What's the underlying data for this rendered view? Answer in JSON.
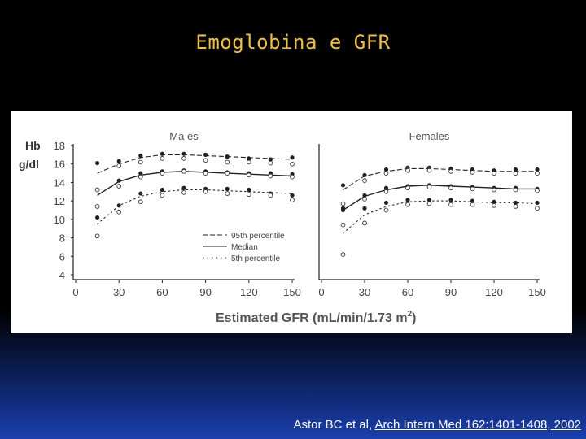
{
  "slide": {
    "title": "Emoglobina e GFR",
    "citation_authors": "Astor BC et al, ",
    "citation_link": "Arch Intern Med 162:1401-1408, 2002"
  },
  "chart_data": {
    "type": "line",
    "ylabel_line1": "Hb",
    "ylabel_line2": "g/dl",
    "xlabel": "Estimated GFR (mL/min/1.73 m",
    "xlabel_sup": "2",
    "xlabel_close": ")",
    "yticks": [
      18,
      16,
      14,
      12,
      10,
      8,
      6,
      4
    ],
    "xticks": [
      0,
      30,
      60,
      90,
      120,
      150
    ],
    "xlim": [
      0,
      150
    ],
    "ylim": [
      4,
      18
    ],
    "legend": {
      "placement": "lower-right of Males panel",
      "entries": [
        "95th percentile",
        "Median",
        "5th percentile"
      ]
    },
    "panels": [
      {
        "title": "Ma es",
        "series": [
          {
            "name": "95th percentile",
            "style": "dashed",
            "x": [
              15,
              30,
              45,
              60,
              75,
              90,
              105,
              120,
              135,
              150
            ],
            "y": [
              15.0,
              16.0,
              16.7,
              17.0,
              17.0,
              16.9,
              16.8,
              16.7,
              16.6,
              16.5
            ]
          },
          {
            "name": "Median",
            "style": "solid",
            "x": [
              15,
              30,
              45,
              60,
              75,
              90,
              105,
              120,
              135,
              150
            ],
            "y": [
              12.6,
              14.1,
              14.8,
              15.1,
              15.2,
              15.1,
              15.0,
              14.9,
              14.8,
              14.7
            ]
          },
          {
            "name": "5th percentile",
            "style": "dotted",
            "x": [
              15,
              30,
              45,
              60,
              75,
              90,
              105,
              120,
              135,
              150
            ],
            "y": [
              9.5,
              11.5,
              12.5,
              13.0,
              13.2,
              13.2,
              13.1,
              13.0,
              12.9,
              12.8
            ]
          }
        ],
        "points_filled": [
          [
            15,
            16.1
          ],
          [
            30,
            16.3
          ],
          [
            45,
            16.9
          ],
          [
            60,
            17.1
          ],
          [
            75,
            17.1
          ],
          [
            90,
            17.0
          ],
          [
            105,
            16.8
          ],
          [
            120,
            16.6
          ],
          [
            135,
            16.5
          ],
          [
            150,
            16.7
          ],
          [
            15,
            13.2
          ],
          [
            30,
            14.2
          ],
          [
            45,
            15.0
          ],
          [
            60,
            15.2
          ],
          [
            75,
            15.3
          ],
          [
            90,
            15.2
          ],
          [
            105,
            15.1
          ],
          [
            120,
            15.0
          ],
          [
            135,
            15.0
          ],
          [
            150,
            14.9
          ],
          [
            15,
            10.2
          ],
          [
            30,
            11.5
          ],
          [
            45,
            12.8
          ],
          [
            60,
            13.2
          ],
          [
            75,
            13.4
          ],
          [
            90,
            13.3
          ],
          [
            105,
            13.3
          ],
          [
            120,
            13.2
          ],
          [
            135,
            12.8
          ],
          [
            150,
            12.6
          ]
        ],
        "points_open": [
          [
            15,
            8.2
          ],
          [
            30,
            15.8
          ],
          [
            45,
            16.2
          ],
          [
            60,
            16.6
          ],
          [
            75,
            16.6
          ],
          [
            90,
            16.4
          ],
          [
            105,
            16.2
          ],
          [
            120,
            16.2
          ],
          [
            135,
            16.1
          ],
          [
            150,
            16.0
          ],
          [
            15,
            11.4
          ],
          [
            30,
            13.6
          ],
          [
            45,
            14.6
          ],
          [
            60,
            15.0
          ],
          [
            75,
            15.2
          ],
          [
            90,
            15.0
          ],
          [
            105,
            15.0
          ],
          [
            120,
            14.8
          ],
          [
            135,
            14.7
          ],
          [
            150,
            14.6
          ],
          [
            15,
            13.2
          ],
          [
            30,
            10.8
          ],
          [
            45,
            11.9
          ],
          [
            60,
            12.6
          ],
          [
            75,
            12.9
          ],
          [
            90,
            13.0
          ],
          [
            105,
            12.8
          ],
          [
            120,
            12.7
          ],
          [
            135,
            12.6
          ],
          [
            150,
            12.1
          ]
        ]
      },
      {
        "title": "Females",
        "series": [
          {
            "name": "95th percentile",
            "style": "dashed",
            "x": [
              15,
              30,
              45,
              60,
              75,
              90,
              105,
              120,
              135,
              150
            ],
            "y": [
              13.2,
              14.7,
              15.2,
              15.5,
              15.5,
              15.4,
              15.3,
              15.2,
              15.2,
              15.2
            ]
          },
          {
            "name": "Median",
            "style": "solid",
            "x": [
              15,
              30,
              45,
              60,
              75,
              90,
              105,
              120,
              135,
              150
            ],
            "y": [
              11.0,
              12.5,
              13.2,
              13.6,
              13.7,
              13.6,
              13.5,
              13.4,
              13.3,
              13.3
            ]
          },
          {
            "name": "5th percentile",
            "style": "dotted",
            "x": [
              15,
              30,
              45,
              60,
              75,
              90,
              105,
              120,
              135,
              150
            ],
            "y": [
              8.5,
              10.5,
              11.4,
              11.9,
              12.0,
              12.0,
              11.9,
              11.8,
              11.8,
              11.7
            ]
          }
        ],
        "points_filled": [
          [
            15,
            13.7
          ],
          [
            30,
            14.8
          ],
          [
            45,
            15.4
          ],
          [
            60,
            15.6
          ],
          [
            75,
            15.6
          ],
          [
            90,
            15.5
          ],
          [
            105,
            15.4
          ],
          [
            120,
            15.3
          ],
          [
            135,
            15.4
          ],
          [
            150,
            15.4
          ],
          [
            15,
            11.2
          ],
          [
            30,
            12.6
          ],
          [
            45,
            13.4
          ],
          [
            60,
            13.6
          ],
          [
            75,
            13.7
          ],
          [
            90,
            13.6
          ],
          [
            105,
            13.5
          ],
          [
            120,
            13.4
          ],
          [
            135,
            13.4
          ],
          [
            150,
            13.3
          ],
          [
            15,
            11.0
          ],
          [
            30,
            11.2
          ],
          [
            45,
            11.8
          ],
          [
            60,
            12.1
          ],
          [
            75,
            12.1
          ],
          [
            90,
            12.1
          ],
          [
            105,
            12.0
          ],
          [
            120,
            11.9
          ],
          [
            135,
            11.8
          ],
          [
            150,
            11.8
          ]
        ],
        "points_open": [
          [
            15,
            6.2
          ],
          [
            30,
            14.2
          ],
          [
            45,
            15.0
          ],
          [
            60,
            15.3
          ],
          [
            75,
            15.3
          ],
          [
            90,
            15.2
          ],
          [
            105,
            15.1
          ],
          [
            120,
            15.0
          ],
          [
            135,
            15.0
          ],
          [
            150,
            15.0
          ],
          [
            15,
            11.7
          ],
          [
            30,
            12.2
          ],
          [
            45,
            13.0
          ],
          [
            60,
            13.4
          ],
          [
            75,
            13.5
          ],
          [
            90,
            13.4
          ],
          [
            105,
            13.3
          ],
          [
            120,
            13.2
          ],
          [
            135,
            13.2
          ],
          [
            150,
            13.1
          ],
          [
            15,
            9.4
          ],
          [
            30,
            9.6
          ],
          [
            45,
            11.0
          ],
          [
            60,
            11.6
          ],
          [
            75,
            11.7
          ],
          [
            90,
            11.6
          ],
          [
            105,
            11.6
          ],
          [
            120,
            11.5
          ],
          [
            135,
            11.4
          ],
          [
            150,
            11.2
          ]
        ]
      }
    ]
  }
}
